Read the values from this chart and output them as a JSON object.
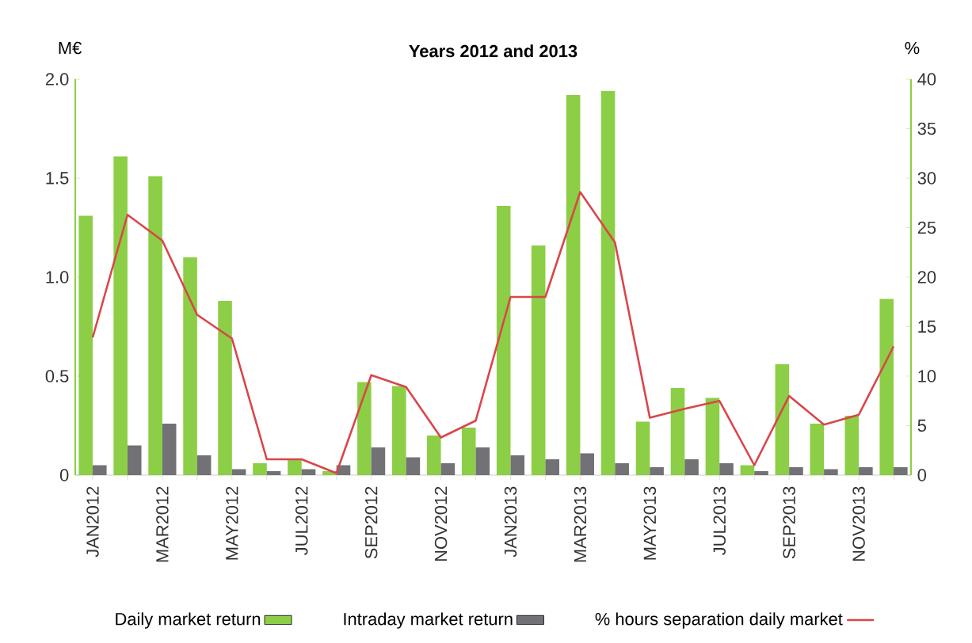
{
  "chart_data": {
    "type": "bar",
    "title": "Years 2012 and 2013",
    "ylabel": "M€",
    "y2label": "%",
    "categories": [
      "JAN2012",
      null,
      "MAR2012",
      null,
      "MAY2012",
      null,
      "JUL2012",
      null,
      "SEP2012",
      null,
      "NOV2012",
      null,
      "JAN2013",
      null,
      "MAR2013",
      null,
      "MAY2013",
      null,
      "JUL2013",
      null,
      "SEP2013",
      null,
      "NOV2013",
      null
    ],
    "series": [
      {
        "name": "Daily market return",
        "color": "#8cce45",
        "values": [
          1.31,
          1.61,
          1.51,
          1.1,
          0.88,
          0.06,
          0.08,
          0.02,
          0.47,
          0.45,
          0.2,
          0.24,
          1.36,
          1.16,
          1.92,
          1.94,
          0.27,
          0.44,
          0.39,
          0.05,
          0.56,
          0.26,
          0.3,
          0.89
        ]
      },
      {
        "name": "Intraday market return",
        "color": "#717176",
        "values": [
          0.05,
          0.15,
          0.26,
          0.1,
          0.03,
          0.02,
          0.03,
          0.05,
          0.14,
          0.09,
          0.06,
          0.14,
          0.1,
          0.08,
          0.11,
          0.06,
          0.04,
          0.08,
          0.06,
          0.02,
          0.04,
          0.03,
          0.04,
          0.04
        ]
      },
      {
        "name": "% hours separation daily market",
        "color": "#d9464a",
        "type": "line",
        "axis": "y2",
        "values": [
          13.9,
          26.3,
          23.7,
          16.2,
          13.8,
          1.6,
          1.6,
          0.2,
          10.1,
          8.9,
          3.8,
          5.5,
          18.0,
          18.0,
          28.6,
          23.5,
          5.8,
          6.7,
          7.5,
          1.0,
          8.0,
          5.1,
          6.1,
          13.0
        ]
      }
    ],
    "ylim": [
      0,
      2.0
    ],
    "yticks": [
      0,
      0.5,
      {
        "value": 1.0,
        "label": "1.0"
      },
      1.5,
      {
        "value": 2.0,
        "label": "2.0"
      }
    ],
    "y2lim": [
      0,
      40
    ],
    "y2ticks": [
      0,
      5,
      10,
      15,
      20,
      25,
      30,
      35,
      40
    ],
    "legend": "bottom"
  }
}
